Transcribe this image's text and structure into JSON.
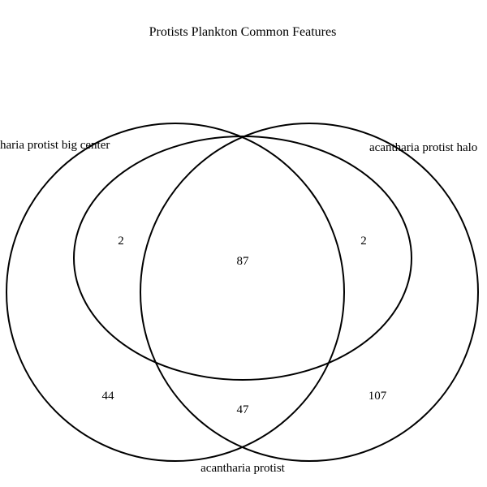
{
  "title": "Protists Plankton Common Features",
  "sets": [
    {
      "label": "acantharia protist big center",
      "shown_text": "haria protist big center"
    },
    {
      "label": "acantharia protist halo",
      "shown_text": "acantharia protist halo"
    },
    {
      "label": "acantharia protist",
      "shown_text": "acantharia protist"
    }
  ],
  "regions": {
    "big_center_only": "44",
    "halo_only": "107",
    "protist_only": "",
    "big_center_and_protist_only": "2",
    "halo_and_protist_only": "2",
    "big_center_and_halo_only": "47",
    "all_three": "87"
  },
  "colors": {
    "stroke": "#000000",
    "background": "#ffffff"
  }
}
